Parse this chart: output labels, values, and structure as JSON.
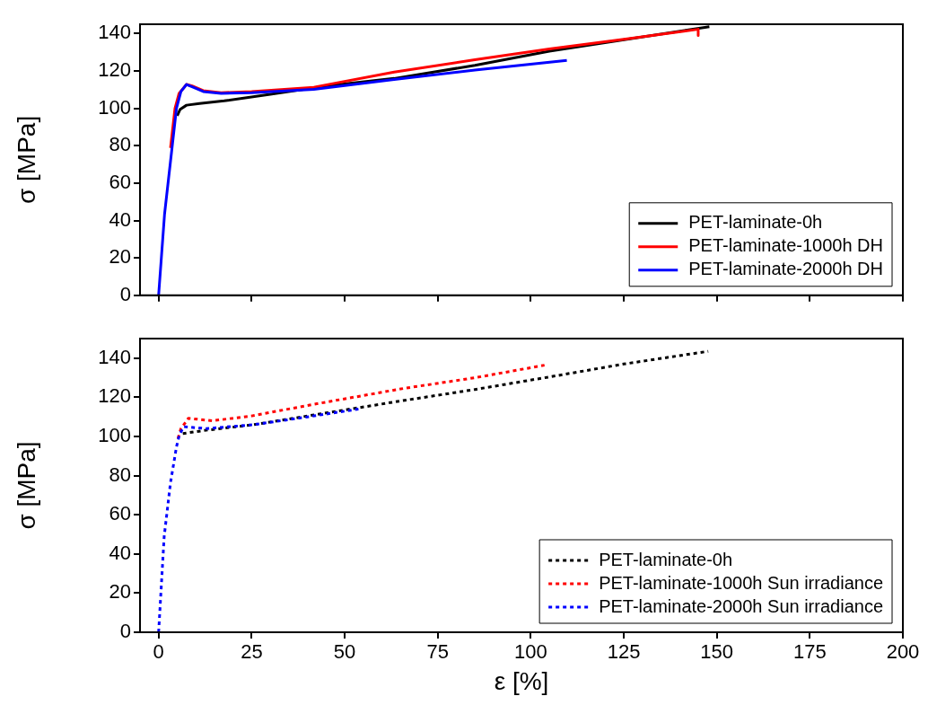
{
  "chart_data": [
    {
      "type": "line",
      "ylabel": "σ [MPa]",
      "xlim": [
        -5,
        200
      ],
      "xticks": [
        0,
        25,
        50,
        75,
        100,
        125,
        150,
        175,
        200
      ],
      "ylim": [
        0,
        145
      ],
      "yticks": [
        0,
        20,
        40,
        60,
        80,
        100,
        120,
        140
      ],
      "tick_labels": "y",
      "grid": false,
      "legend": "bottom right",
      "marker": "none",
      "line_style": "solid",
      "series": [
        {
          "name": "PET-laminate-0h",
          "color": "#000000",
          "x": [
            5,
            5.8,
            7.5,
            11,
            17.6,
            30,
            45,
            63.3,
            85,
            105,
            148
          ],
          "values": [
            96,
            99.5,
            101.7,
            102.6,
            104,
            107.5,
            112,
            116,
            123,
            130.6,
            143.7
          ]
        },
        {
          "name": "PET-laminate-1000h DH",
          "color": "#ff0000",
          "x": [
            3.2,
            4.4,
            5.5,
            7.5,
            9,
            12,
            16.8,
            25,
            41.7,
            63.3,
            85,
            105,
            125,
            145,
            145
          ],
          "values": [
            78.8,
            100,
            108,
            112.8,
            112,
            109.5,
            108.4,
            109,
            111.3,
            119.4,
            126,
            131.8,
            137,
            142.3,
            139
          ]
        },
        {
          "name": "PET-laminate-2000h DH",
          "color": "#0000ff",
          "x": [
            0,
            1.6,
            3.6,
            4.8,
            6,
            7.5,
            9,
            12,
            16.8,
            25,
            41.7,
            63.3,
            85,
            109.7
          ],
          "values": [
            0,
            43.5,
            78.8,
            100,
            109,
            112.8,
            111.5,
            109,
            108,
            108.4,
            110.2,
            115.5,
            120.5,
            125.7
          ]
        }
      ]
    },
    {
      "type": "line",
      "xlabel": "ε [%]",
      "ylabel": "σ [MPa]",
      "xlim": [
        -5,
        200
      ],
      "xticks": [
        0,
        25,
        50,
        75,
        100,
        125,
        150,
        175,
        200
      ],
      "ylim": [
        0,
        150
      ],
      "yticks": [
        0,
        20,
        40,
        60,
        80,
        100,
        120,
        140
      ],
      "grid": false,
      "legend": "bottom right",
      "marker": "none",
      "line_style": "dotted",
      "series": [
        {
          "name": "PET-laminate-0h",
          "color": "#000000",
          "x": [
            6.5,
            12,
            25.5,
            45,
            64.6,
            85,
            105,
            125,
            147.7
          ],
          "values": [
            101.5,
            103,
            106,
            112,
            118,
            124,
            130.4,
            137,
            143.5
          ]
        },
        {
          "name": "PET-laminate-1000h Sun irradiance",
          "color": "#ff0000",
          "x": [
            5.2,
            6,
            8,
            14.4,
            25,
            41.6,
            65.7,
            85,
            103.7
          ],
          "values": [
            99,
            104,
            109.3,
            108,
            110.5,
            116.4,
            124.5,
            130,
            136.4
          ]
        },
        {
          "name": "PET-laminate-2000h Sun irradiance",
          "color": "#0000ff",
          "x": [
            0,
            1.5,
            3.2,
            4.8,
            5.6,
            6.8,
            12.8,
            25.5,
            40,
            53.7
          ],
          "values": [
            0,
            49,
            76.5,
            94.7,
            101,
            105,
            104,
            106,
            110,
            114
          ]
        }
      ]
    }
  ]
}
